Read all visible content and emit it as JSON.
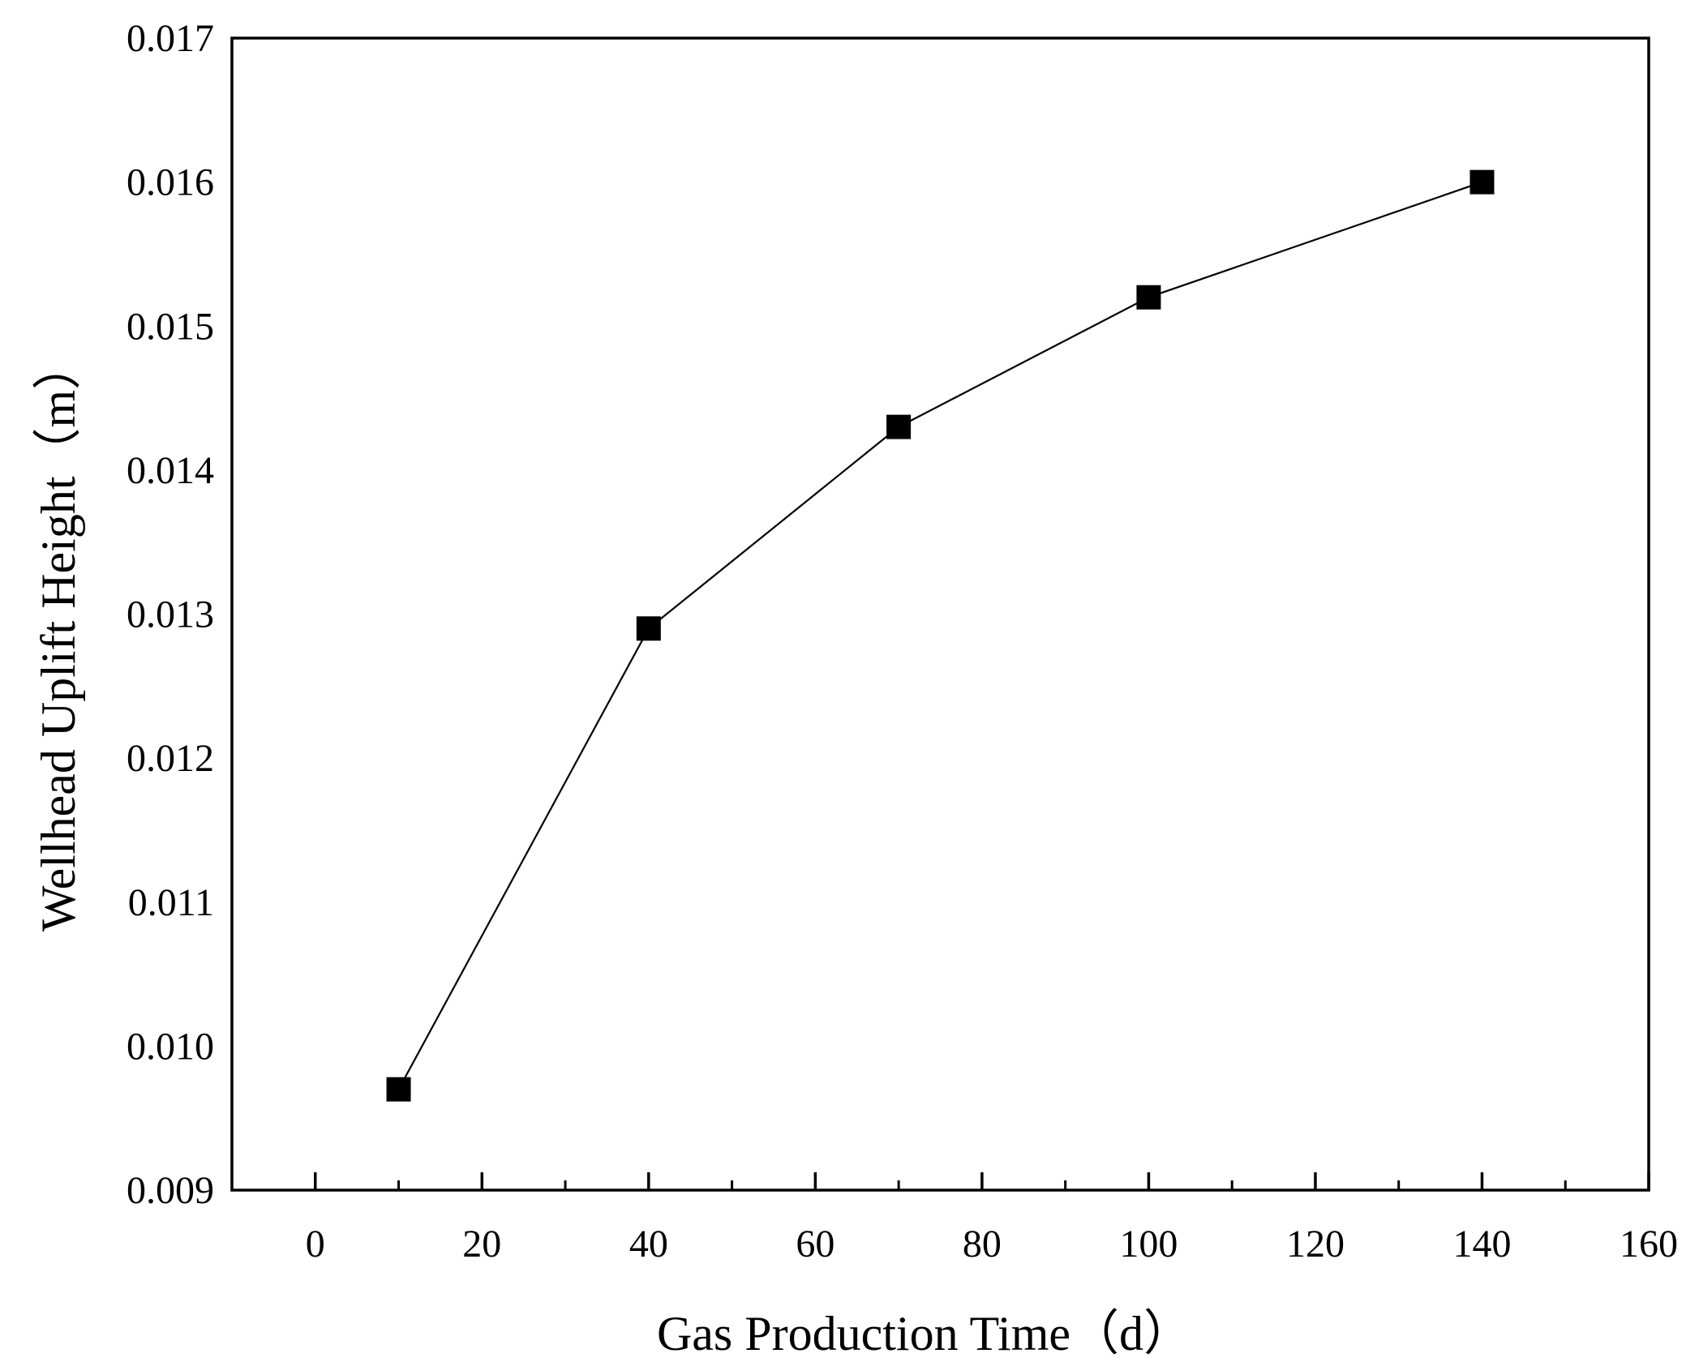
{
  "chart_data": {
    "type": "line",
    "title": "",
    "xlabel": "Gas Production Time（d）",
    "ylabel": "Wellhead Uplift Height（m）",
    "xlim": [
      -10,
      160
    ],
    "ylim": [
      0.009,
      0.017
    ],
    "x_ticks": [
      0,
      20,
      40,
      60,
      80,
      100,
      120,
      140,
      160
    ],
    "x_tick_labels": [
      "0",
      "20",
      "40",
      "60",
      "80",
      "100",
      "120",
      "140",
      "160"
    ],
    "y_ticks": [
      0.009,
      0.01,
      0.011,
      0.012,
      0.013,
      0.014,
      0.015,
      0.016,
      0.017
    ],
    "y_tick_labels": [
      "0.009",
      "0.010",
      "0.011",
      "0.012",
      "0.013",
      "0.014",
      "0.015",
      "0.016",
      "0.017"
    ],
    "grid": false,
    "legend": "none",
    "series": [
      {
        "marker": "square",
        "color": "#000000",
        "x": [
          10,
          40,
          70,
          100,
          140
        ],
        "y": [
          0.0097,
          0.0129,
          0.0143,
          0.0152,
          0.016
        ]
      }
    ]
  }
}
